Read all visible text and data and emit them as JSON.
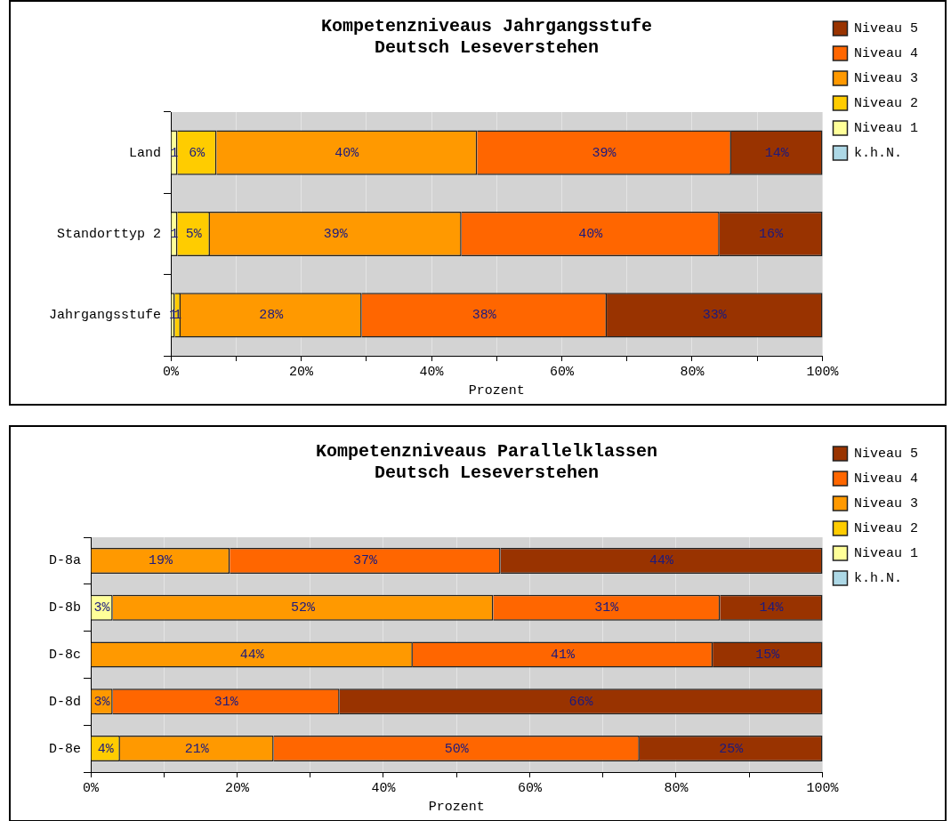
{
  "chart_data": [
    {
      "type": "bar",
      "title": "Kompetenzniveaus Jahrgangsstufe",
      "subtitle": "Deutsch Leseverstehen",
      "xlabel": "Prozent",
      "orientation": "horizontal",
      "stacked": true,
      "legend": "right",
      "grid": "x",
      "categories": [
        "Land",
        "Standorttyp 2",
        "Jahrgangsstufe"
      ],
      "xlim": [
        0,
        100
      ],
      "xticks": [
        {
          "value": 0,
          "label": "0%"
        },
        {
          "value": 10,
          "label": null
        },
        {
          "value": 20,
          "label": "20%"
        },
        {
          "value": 30,
          "label": null
        },
        {
          "value": 40,
          "label": "40%"
        },
        {
          "value": 50,
          "label": null
        },
        {
          "value": 60,
          "label": "60%"
        },
        {
          "value": 70,
          "label": null
        },
        {
          "value": 80,
          "label": "80%"
        },
        {
          "value": 90,
          "label": null
        },
        {
          "value": 100,
          "label": "100%"
        }
      ],
      "series": [
        {
          "name": "k.h.N.",
          "color": "#add8e6",
          "values": [
            null,
            null,
            null
          ]
        },
        {
          "name": "Niveau 1",
          "color": "#ffff99",
          "values": [
            1,
            1,
            0.6
          ],
          "value_labels": [
            "1",
            "1",
            "1"
          ]
        },
        {
          "name": "Niveau 2",
          "color": "#ffcc00",
          "values": [
            6,
            5,
            0.9
          ],
          "value_labels": [
            "6%",
            "5%",
            "1"
          ]
        },
        {
          "name": "Niveau 3",
          "color": "#ff9900",
          "values": [
            40,
            38.6,
            27.8
          ],
          "value_labels": [
            "40%",
            "39%",
            "28%"
          ]
        },
        {
          "name": "Niveau 4",
          "color": "#ff6600",
          "values": [
            39,
            39.6,
            37.6
          ],
          "value_labels": [
            "39%",
            "40%",
            "38%"
          ]
        },
        {
          "name": "Niveau 5",
          "color": "#993300",
          "values": [
            14,
            15.8,
            33.1
          ],
          "value_labels": [
            "14%",
            "16%",
            "33%"
          ]
        }
      ]
    },
    {
      "type": "bar",
      "title": "Kompetenzniveaus Parallelklassen",
      "subtitle": "Deutsch Leseverstehen",
      "xlabel": "Prozent",
      "orientation": "horizontal",
      "stacked": true,
      "legend": "right",
      "grid": "x",
      "categories": [
        "D-8a",
        "D-8b",
        "D-8c",
        "D-8d",
        "D-8e"
      ],
      "xlim": [
        0,
        100
      ],
      "xticks": [
        {
          "value": 0,
          "label": "0%"
        },
        {
          "value": 10,
          "label": null
        },
        {
          "value": 20,
          "label": "20%"
        },
        {
          "value": 30,
          "label": null
        },
        {
          "value": 40,
          "label": "40%"
        },
        {
          "value": 50,
          "label": null
        },
        {
          "value": 60,
          "label": "60%"
        },
        {
          "value": 70,
          "label": null
        },
        {
          "value": 80,
          "label": "80%"
        },
        {
          "value": 90,
          "label": null
        },
        {
          "value": 100,
          "label": "100%"
        }
      ],
      "series": [
        {
          "name": "k.h.N.",
          "color": "#add8e6",
          "values": [
            null,
            null,
            null,
            null,
            null
          ]
        },
        {
          "name": "Niveau 1",
          "color": "#ffff99",
          "values": [
            null,
            3,
            null,
            null,
            null
          ],
          "value_labels": [
            null,
            "3%",
            null,
            null,
            null
          ]
        },
        {
          "name": "Niveau 2",
          "color": "#ffcc00",
          "values": [
            null,
            null,
            null,
            null,
            4
          ],
          "value_labels": [
            null,
            null,
            null,
            null,
            "4%"
          ]
        },
        {
          "name": "Niveau 3",
          "color": "#ff9900",
          "values": [
            19,
            52,
            44,
            3,
            21
          ],
          "value_labels": [
            "19%",
            "52%",
            "44%",
            "3%",
            "21%"
          ]
        },
        {
          "name": "Niveau 4",
          "color": "#ff6600",
          "values": [
            37,
            31,
            41,
            31,
            50
          ],
          "value_labels": [
            "37%",
            "31%",
            "41%",
            "31%",
            "50%"
          ]
        },
        {
          "name": "Niveau 5",
          "color": "#993300",
          "values": [
            44,
            14,
            15,
            66,
            25
          ],
          "value_labels": [
            "44%",
            "14%",
            "15%",
            "66%",
            "25%"
          ]
        }
      ]
    }
  ]
}
